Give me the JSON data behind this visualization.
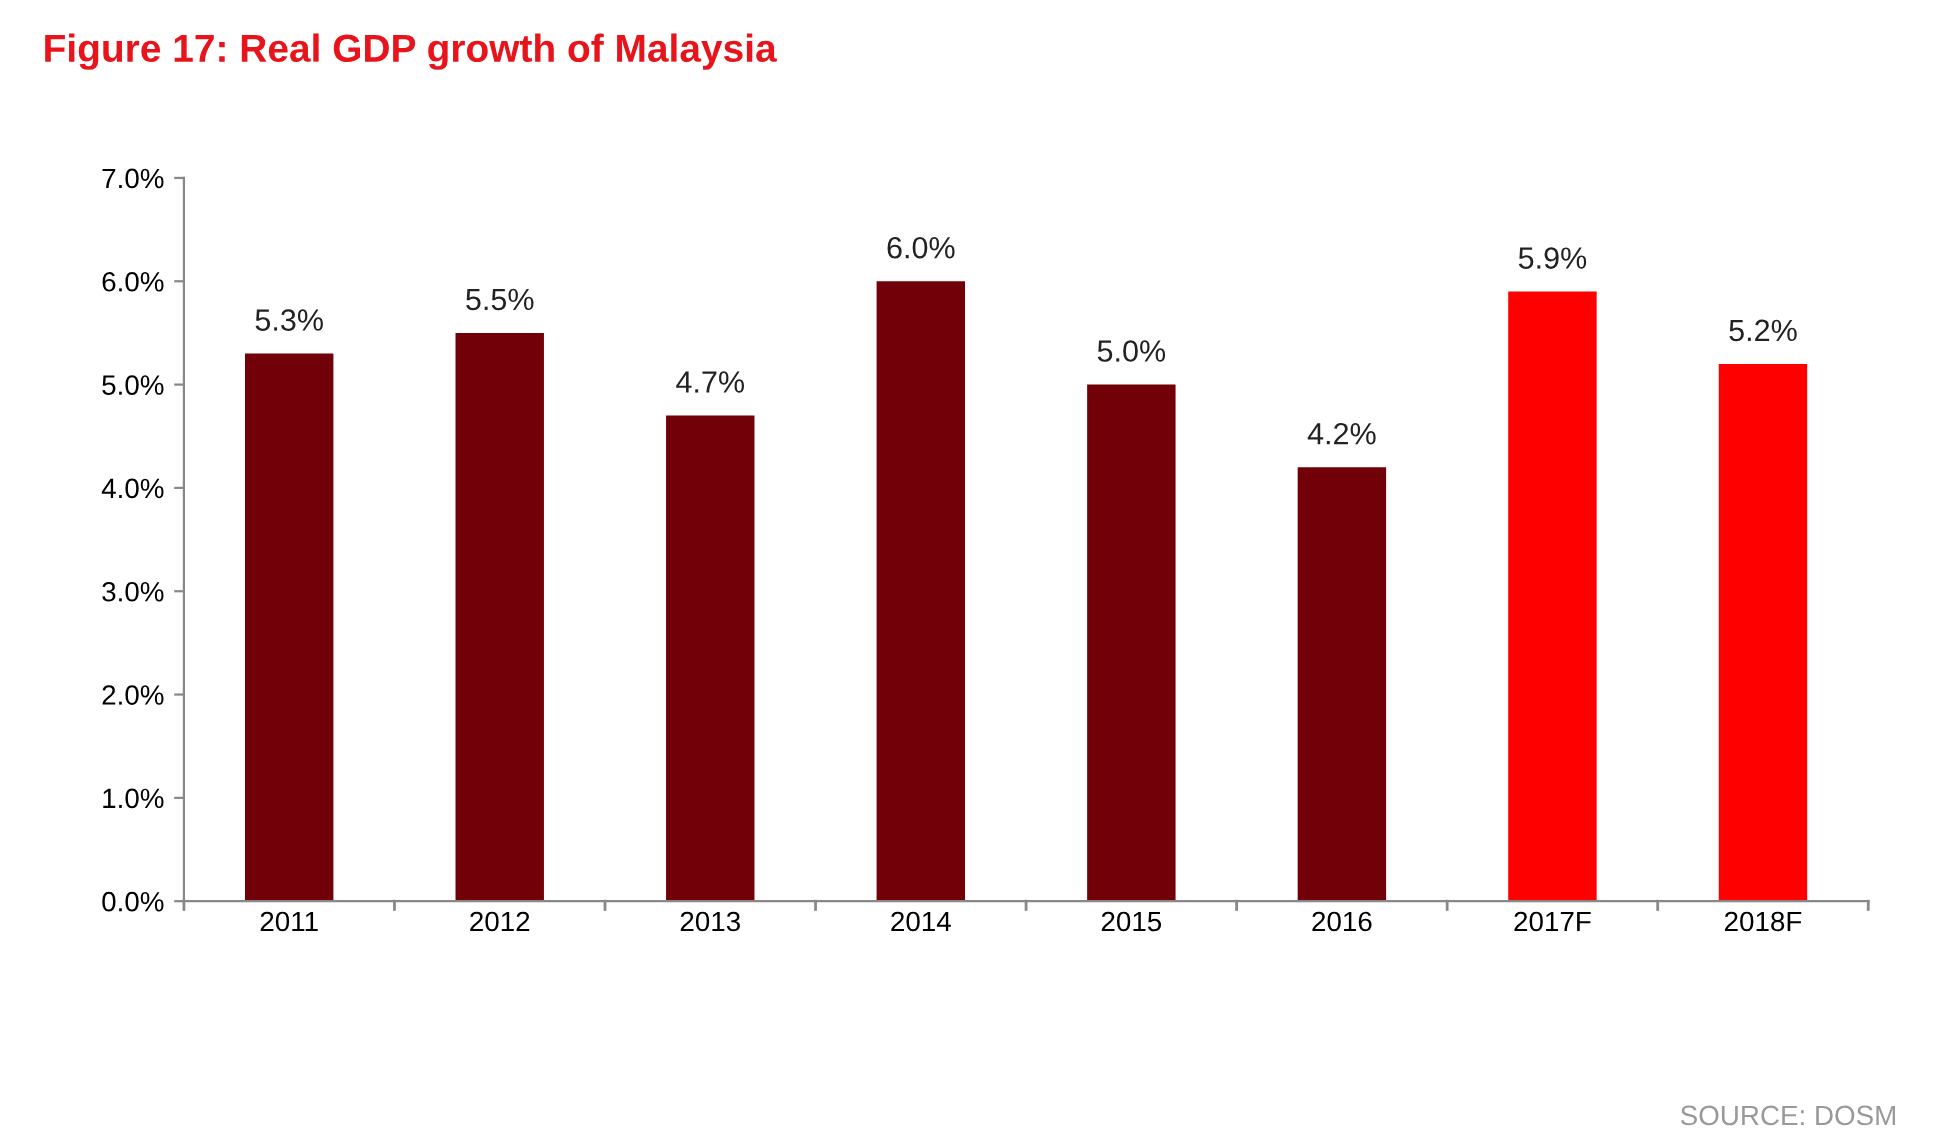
{
  "chart_data": {
    "type": "bar",
    "title": "Figure 17: Real GDP growth of Malaysia",
    "categories": [
      "2011",
      "2012",
      "2013",
      "2014",
      "2015",
      "2016",
      "2017F",
      "2018F"
    ],
    "values": [
      5.3,
      5.5,
      4.7,
      6.0,
      5.0,
      4.2,
      5.9,
      5.2
    ],
    "colors": [
      "#720009",
      "#720009",
      "#720009",
      "#720009",
      "#720009",
      "#720009",
      "#ff0000",
      "#ff0000"
    ],
    "value_labels": [
      "5.3%",
      "5.5%",
      "4.7%",
      "6.0%",
      "5.0%",
      "4.2%",
      "5.9%",
      "5.2%"
    ],
    "ylim": [
      0,
      7
    ],
    "yticks": [
      {
        "value": 0,
        "label": "0.0%"
      },
      {
        "value": 1,
        "label": "1.0%"
      },
      {
        "value": 2,
        "label": "2.0%"
      },
      {
        "value": 3,
        "label": "3.0%"
      },
      {
        "value": 4,
        "label": "4.0%"
      },
      {
        "value": 5,
        "label": "5.0%"
      },
      {
        "value": 6,
        "label": "6.0%"
      },
      {
        "value": 7,
        "label": "7.0%"
      }
    ],
    "grid": false,
    "legend": false,
    "annotations": [
      "SOURCE: DOSM"
    ]
  }
}
